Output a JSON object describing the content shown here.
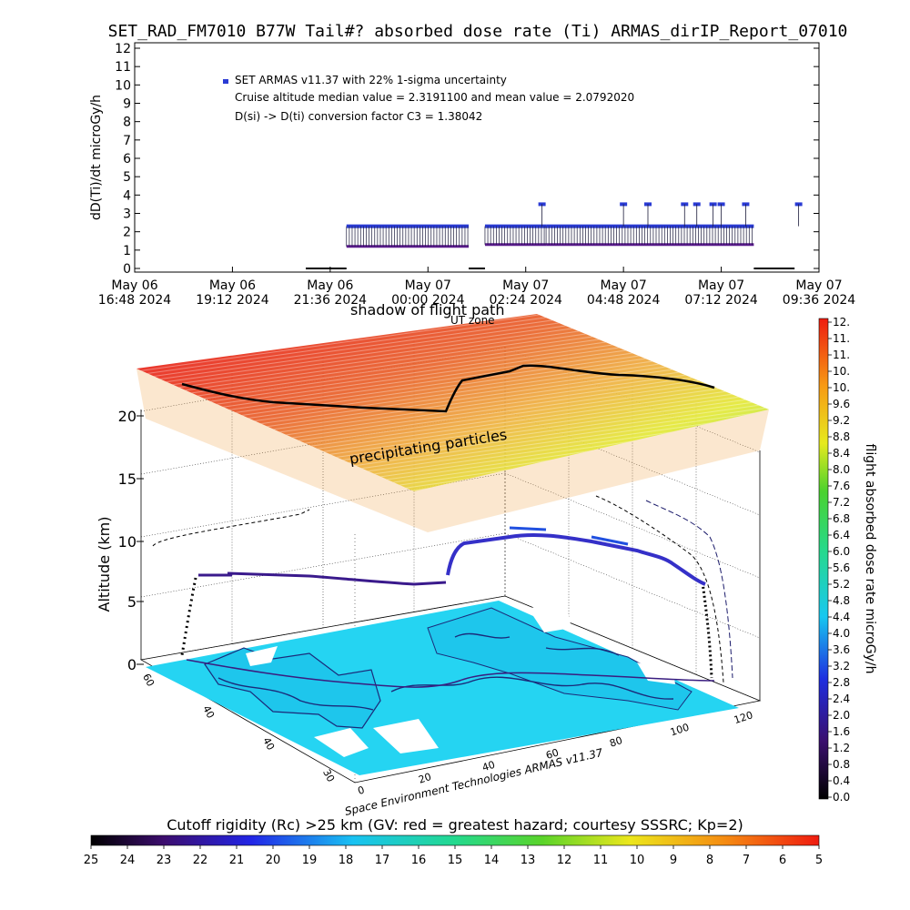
{
  "page_title": "SET_RAD_FM7010  B77W Tail#? absorbed dose rate (Ti) ARMAS_dirIP_Report_07010",
  "colors": {
    "series_blue": "#2a3bd4",
    "series_purple": "#5a1a8c",
    "ocean": "#25d4f2",
    "land_edge": "#1b2a7a"
  },
  "chart_data": [
    {
      "id": "dose_rate_timeseries",
      "type": "line",
      "title": "",
      "ylabel": "dD(Ti)/dt microGy/h",
      "xlabel": "",
      "ylim": [
        0,
        12
      ],
      "y_ticks": [
        "0",
        "1",
        "2",
        "3",
        "4",
        "5",
        "6",
        "7",
        "8",
        "9",
        "10",
        "11",
        "12"
      ],
      "x_ticks": [
        {
          "top": "May 06",
          "bottom": "16:48 2024"
        },
        {
          "top": "May 06",
          "bottom": "19:12 2024"
        },
        {
          "top": "May 06",
          "bottom": "21:36 2024"
        },
        {
          "top": "May 07",
          "bottom": "00:00 2024"
        },
        {
          "top": "May 07",
          "bottom": "02:24 2024"
        },
        {
          "top": "May 07",
          "bottom": "04:48 2024"
        },
        {
          "top": "May 07",
          "bottom": "07:12 2024"
        },
        {
          "top": "May 07",
          "bottom": "09:36 2024"
        }
      ],
      "x_range_hours": [
        0,
        16.8
      ],
      "legend": {
        "entry": "SET ARMAS v11.37 with 22% 1-sigma uncertainty",
        "line2": "Cruise altitude median value = 2.3191100 and mean value = 2.0792020",
        "line3": "D(si) -> D(ti) conversion factor C3 = 1.38042",
        "placement": "top-left"
      },
      "series": [
        {
          "name": "SET ARMAS v11.37 with 22% 1-sigma uncertainty",
          "segments": [
            {
              "t": [
                4.2,
                5.2
              ],
              "y": 0
            },
            {
              "t": [
                5.2,
                8.2
              ],
              "y": 1.2
            },
            {
              "t": [
                8.2,
                8.6
              ],
              "y": 0
            },
            {
              "t": [
                8.6,
                10.1
              ],
              "y": 1.3
            },
            {
              "t": [
                10.1,
                15.2
              ],
              "y": 1.3
            },
            {
              "t": [
                15.2,
                16.2
              ],
              "y": 0
            }
          ],
          "high_level": 2.3,
          "spike_level": 3.5,
          "spikes_t": [
            10.0,
            12.0,
            12.6,
            13.5,
            13.8,
            14.2,
            14.4,
            15.0,
            16.3
          ]
        }
      ]
    },
    {
      "id": "flight_3d",
      "type": "scatter",
      "title": "",
      "zlabel": "Altitude (km)",
      "z_ticks": [
        "0",
        "5",
        "10",
        "15",
        "20"
      ],
      "zlim": [
        0,
        22
      ],
      "lon_ticks": [
        "0",
        "20",
        "40",
        "60",
        "80",
        "100",
        "120"
      ],
      "lat_ticks": [
        "60",
        "40",
        "40",
        "30"
      ],
      "annotations": {
        "shadow": "shadow of flight path",
        "ut_zone": "UT zone",
        "precip": "precipitating particles",
        "credit": "Space Environment Technologies ARMAS v11.37"
      },
      "colorbar": {
        "label": "flight absorbed dose rate microGy/h",
        "ticks": [
          "12.",
          "11.",
          "11.",
          "10.",
          "10.",
          "9.6",
          "9.2",
          "8.8",
          "8.4",
          "8.0",
          "7.6",
          "7.2",
          "6.8",
          "6.4",
          "6.0",
          "5.6",
          "5.2",
          "4.8",
          "4.4",
          "4.0",
          "3.6",
          "3.2",
          "2.8",
          "2.4",
          "2.0",
          "1.6",
          "1.2",
          "0.8",
          "0.4",
          "0.0"
        ],
        "range": [
          0,
          12
        ]
      }
    },
    {
      "id": "cutoff_rigidity_bar",
      "type": "heatmap",
      "title": "Cutoff rigidity (Rc) >25 km (GV: red = greatest hazard; courtesy SSSRC; Kp=2)",
      "ticks": [
        "25",
        "24",
        "23",
        "22",
        "21",
        "20",
        "19",
        "18",
        "17",
        "16",
        "15",
        "14",
        "13",
        "12",
        "11",
        "10",
        "9",
        "8",
        "7",
        "6",
        "5"
      ],
      "range": [
        25,
        5
      ]
    }
  ]
}
